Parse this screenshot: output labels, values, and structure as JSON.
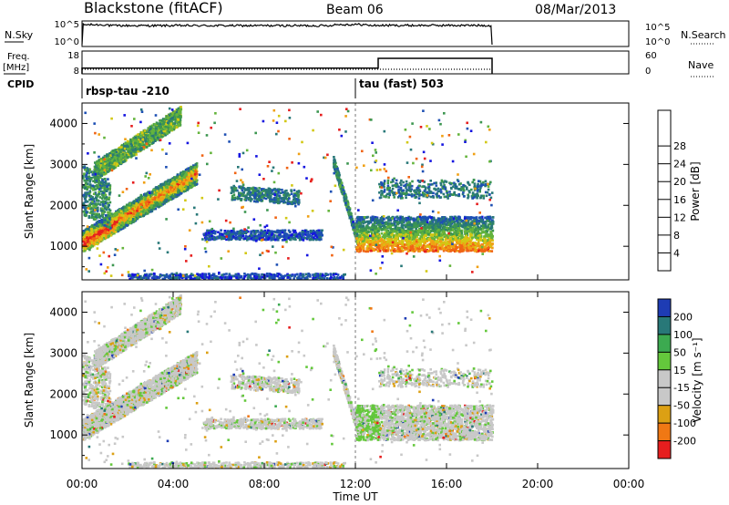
{
  "header": {
    "station": "Blackstone (fitACF)",
    "beam": "Beam 06",
    "date": "08/Mar/2013"
  },
  "left_labels": {
    "nsky": "N.Sky",
    "freq_line1": "Freq.",
    "freq_line2": "[MHz]",
    "cpid": "CPID"
  },
  "right_labels": {
    "nsearch": "N.Search",
    "nave": "Nave"
  },
  "strip_ticks": {
    "noise_left": [
      "10^5",
      "10^0"
    ],
    "noise_right": [
      "10^5",
      "10^0"
    ],
    "freq_left": [
      "18",
      "8"
    ],
    "freq_right": [
      "60",
      "0"
    ]
  },
  "cpid_entries": [
    {
      "label": "rbsp-tau -210",
      "start_hour": 0
    },
    {
      "label": "tau (fast) 503",
      "start_hour": 12
    }
  ],
  "time_axis": {
    "title": "Time UT",
    "ticks": [
      "00:00",
      "04:00",
      "08:00",
      "12:00",
      "16:00",
      "20:00",
      "00:00"
    ],
    "range_hours": [
      0,
      24
    ]
  },
  "power_scale": {
    "title": "Power [dB]",
    "ticks": [
      "4",
      "8",
      "12",
      "16",
      "20",
      "24",
      "28"
    ],
    "colors": [
      "#1414e0",
      "#1e50b4",
      "#287878",
      "#3c9650",
      "#64b43c",
      "#d2c814",
      "#f0a014",
      "#f06414",
      "#e61e1e"
    ]
  },
  "velocity_scale": {
    "title": "Velocity [m s⁻¹]",
    "ticks": [
      "200",
      "100",
      "50",
      "15",
      "-15",
      "-50",
      "-100",
      "-200"
    ],
    "colors": [
      "#1e3cb4",
      "#287878",
      "#3caa50",
      "#64c83c",
      "#c8c8c8",
      "#c8c8c8",
      "#dca014",
      "#f07814",
      "#e61e1e"
    ]
  },
  "chart_data": [
    {
      "type": "heatmap",
      "name": "power",
      "xlabel": "Time UT",
      "ylabel": "Slant Range [km]",
      "xlim": [
        0,
        24
      ],
      "ylim": [
        180,
        4500
      ],
      "yticks": [
        1000,
        2000,
        3000,
        4000
      ],
      "colorbar": {
        "label": "Power [dB]",
        "range": [
          0,
          32
        ]
      },
      "echo_regions_hours_km": [
        {
          "t": [
            0.0,
            2.0
          ],
          "r": [
            1050,
            3000
          ]
        },
        {
          "t": [
            0.5,
            4.5
          ],
          "r": [
            2900,
            4300
          ]
        },
        {
          "t": [
            0.2,
            5.0
          ],
          "r": [
            1000,
            2600
          ]
        },
        {
          "t": [
            6.0,
            9.5
          ],
          "r": [
            2000,
            2500
          ]
        },
        {
          "t": [
            5.5,
            10.5
          ],
          "r": [
            1150,
            1400
          ]
        },
        {
          "t": [
            12.0,
            18.0
          ],
          "r": [
            900,
            1750
          ]
        },
        {
          "t": [
            13.0,
            18.0
          ],
          "r": [
            2200,
            2600
          ]
        }
      ]
    },
    {
      "type": "heatmap",
      "name": "velocity",
      "xlabel": "Time UT",
      "ylabel": "Slant Range [km]",
      "xlim": [
        0,
        24
      ],
      "ylim": [
        180,
        4500
      ],
      "yticks": [
        1000,
        2000,
        3000,
        4000
      ],
      "colorbar": {
        "label": "Velocity [m s⁻¹]",
        "range": [
          -250,
          250
        ]
      }
    },
    {
      "type": "line",
      "name": "noise",
      "x_range_hours": [
        0,
        18
      ],
      "y_log_range": [
        0,
        5
      ]
    },
    {
      "type": "line",
      "name": "frequency",
      "segments": [
        {
          "t": [
            0,
            13
          ],
          "value_mhz": 10.5
        },
        {
          "t": [
            13,
            18
          ],
          "value_mhz": 14.8
        }
      ],
      "nave_level": 12
    }
  ]
}
